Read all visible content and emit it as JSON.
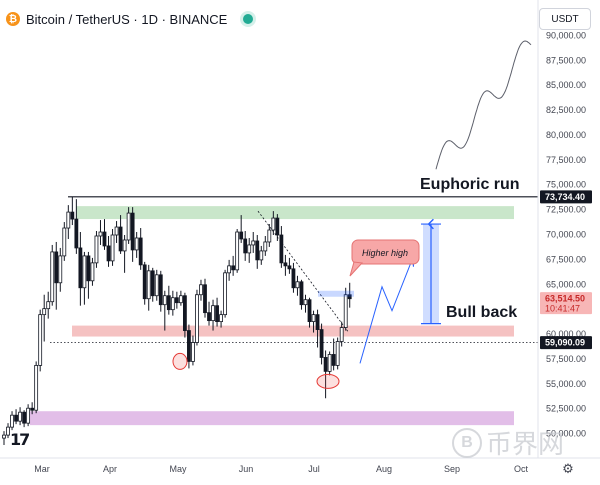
{
  "header": {
    "coin_symbol": "₿",
    "title": "Bitcoin / TetherUS · 1D · BINANCE",
    "status_color": "#22ab94"
  },
  "currency_button": {
    "label": "USDT"
  },
  "settings_icon": "gear-icon",
  "logo": {
    "text": "17"
  },
  "watermark": {
    "symbol": "B",
    "text": "币界网"
  },
  "chart_data": {
    "type": "candlestick",
    "symbol": "BTC/USDT",
    "interval": "1D",
    "exchange": "BINANCE",
    "y_axis": {
      "range": [
        47500,
        92500
      ],
      "ticks": [
        50000,
        52500,
        55000,
        57500,
        60000,
        62500,
        65000,
        67500,
        70000,
        72500,
        75000,
        77500,
        80000,
        82500,
        85000,
        87500,
        90000
      ],
      "tick_labels": [
        "50,000.00",
        "52,500.00",
        "55,000.00",
        "57,500.00",
        "60,000.00",
        "62,500.00",
        "65,000.00",
        "67,500.00",
        "70,000.00",
        "72,500.00",
        "75,000.00",
        "77,500.00",
        "80,000.00",
        "82,500.00",
        "85,000.00",
        "87,500.00",
        "90,000.00"
      ]
    },
    "x_axis": {
      "labels": [
        "Mar",
        "Apr",
        "May",
        "Jun",
        "Jul",
        "Aug",
        "Sep",
        "Oct"
      ]
    },
    "price_labels": [
      {
        "value": 73734.4,
        "text": "73,734.40",
        "style": "dark"
      },
      {
        "value": 63514.5,
        "text": "63,514.50",
        "subtext": "10:41:47",
        "style": "red"
      },
      {
        "value": 59090.09,
        "text": "59,090.09",
        "style": "dark"
      }
    ],
    "zones": [
      {
        "name": "green-resistance",
        "from": 71500,
        "to": 72800,
        "color": "#a5d6a7"
      },
      {
        "name": "red-support",
        "from": 59700,
        "to": 60800,
        "color": "#ef9a9a"
      },
      {
        "name": "purple-demand",
        "from": 50800,
        "to": 52200,
        "color": "#ce93d8"
      }
    ],
    "levels": [
      {
        "name": "ath-line",
        "value": 73734.4,
        "style": "solid"
      },
      {
        "name": "support-line",
        "value": 59090.09,
        "style": "dotted"
      }
    ],
    "annotations": {
      "euphoric_run": "Euphoric run",
      "bull_back": "Bull back",
      "higher_high": "Higher high"
    },
    "projection_range": {
      "from": 61000,
      "to": 71000
    },
    "candles": [
      [
        49500,
        50200,
        48800,
        49800
      ],
      [
        49800,
        51000,
        49500,
        50600
      ],
      [
        50600,
        52200,
        50300,
        51800
      ],
      [
        51800,
        52400,
        50900,
        51200
      ],
      [
        51200,
        52600,
        50800,
        52100
      ],
      [
        52100,
        52300,
        50600,
        51000
      ],
      [
        51000,
        52900,
        50700,
        52500
      ],
      [
        52500,
        53100,
        51900,
        52300
      ],
      [
        52300,
        57200,
        52000,
        56800
      ],
      [
        56800,
        62400,
        56200,
        61900
      ],
      [
        61900,
        63900,
        59200,
        62500
      ],
      [
        62500,
        64200,
        61500,
        63200
      ],
      [
        63200,
        68900,
        62800,
        68200
      ],
      [
        68200,
        69200,
        62400,
        65100
      ],
      [
        65100,
        68600,
        64200,
        67800
      ],
      [
        67800,
        71200,
        67300,
        70600
      ],
      [
        70600,
        72900,
        69500,
        72200
      ],
      [
        72200,
        73734,
        70900,
        71500
      ],
      [
        71500,
        73500,
        68000,
        68600
      ],
      [
        68600,
        70200,
        62800,
        64600
      ],
      [
        64600,
        68200,
        62900,
        67800
      ],
      [
        67800,
        68200,
        63500,
        65300
      ],
      [
        65300,
        67600,
        64800,
        67100
      ],
      [
        67100,
        70300,
        66600,
        69800
      ],
      [
        69800,
        71400,
        68900,
        70200
      ],
      [
        70200,
        71500,
        68400,
        68800
      ],
      [
        68800,
        69800,
        66700,
        67300
      ],
      [
        67300,
        70500,
        66800,
        69900
      ],
      [
        69900,
        71300,
        69100,
        70700
      ],
      [
        70700,
        71900,
        68000,
        68300
      ],
      [
        68300,
        69900,
        66100,
        69400
      ],
      [
        69400,
        72700,
        69000,
        72100
      ],
      [
        72100,
        72700,
        67200,
        68400
      ],
      [
        68400,
        70200,
        67600,
        69600
      ],
      [
        69600,
        70600,
        66400,
        66900
      ],
      [
        66900,
        67200,
        62900,
        63500
      ],
      [
        63500,
        66900,
        62300,
        66300
      ],
      [
        66300,
        66600,
        63200,
        63800
      ],
      [
        63800,
        66400,
        63300,
        65900
      ],
      [
        65900,
        66300,
        62200,
        62900
      ],
      [
        62900,
        64300,
        60300,
        63800
      ],
      [
        63800,
        64800,
        61900,
        62400
      ],
      [
        62400,
        64300,
        61800,
        63600
      ],
      [
        63600,
        64200,
        62500,
        63100
      ],
      [
        63100,
        64300,
        62800,
        63800
      ],
      [
        63800,
        64100,
        59600,
        60300
      ],
      [
        60300,
        60900,
        56500,
        57200
      ],
      [
        57200,
        59800,
        56800,
        59100
      ],
      [
        59100,
        64400,
        58800,
        63900
      ],
      [
        63900,
        65400,
        63300,
        64900
      ],
      [
        64900,
        65500,
        61600,
        62100
      ],
      [
        62100,
        63200,
        60800,
        61300
      ],
      [
        61300,
        63400,
        60300,
        62800
      ],
      [
        62800,
        63600,
        60700,
        61200
      ],
      [
        61200,
        62300,
        60600,
        61900
      ],
      [
        61900,
        66400,
        61600,
        66100
      ],
      [
        66100,
        67400,
        65300,
        66800
      ],
      [
        66800,
        67800,
        65800,
        66400
      ],
      [
        66400,
        70500,
        66100,
        70200
      ],
      [
        70200,
        71900,
        69100,
        69500
      ],
      [
        69500,
        70300,
        67300,
        68100
      ],
      [
        68100,
        69600,
        67100,
        68900
      ],
      [
        68900,
        70200,
        68100,
        69300
      ],
      [
        69300,
        69900,
        66500,
        67400
      ],
      [
        67400,
        68800,
        66900,
        68300
      ],
      [
        68300,
        69800,
        67800,
        69200
      ],
      [
        69200,
        71000,
        68700,
        70400
      ],
      [
        70400,
        72300,
        69900,
        71600
      ],
      [
        71600,
        72000,
        69300,
        69900
      ],
      [
        69900,
        70800,
        66600,
        67100
      ],
      [
        67100,
        67900,
        65800,
        66800
      ],
      [
        66800,
        67600,
        66000,
        66500
      ],
      [
        66500,
        67100,
        64100,
        64600
      ],
      [
        64600,
        65800,
        63800,
        65200
      ],
      [
        65200,
        65400,
        62400,
        62900
      ],
      [
        62900,
        63900,
        62100,
        63400
      ],
      [
        63400,
        63600,
        60600,
        61200
      ],
      [
        61200,
        62300,
        60100,
        61900
      ],
      [
        61900,
        62400,
        58600,
        60400
      ],
      [
        60400,
        61000,
        56900,
        57600
      ],
      [
        57600,
        58300,
        53500,
        56200
      ],
      [
        56200,
        58200,
        55800,
        57900
      ],
      [
        57900,
        59500,
        56300,
        56800
      ],
      [
        56800,
        59600,
        56400,
        59200
      ],
      [
        59200,
        61200,
        58700,
        60600
      ],
      [
        60600,
        64600,
        60300,
        63900
      ],
      [
        63900,
        65100,
        62600,
        63500
      ]
    ]
  }
}
